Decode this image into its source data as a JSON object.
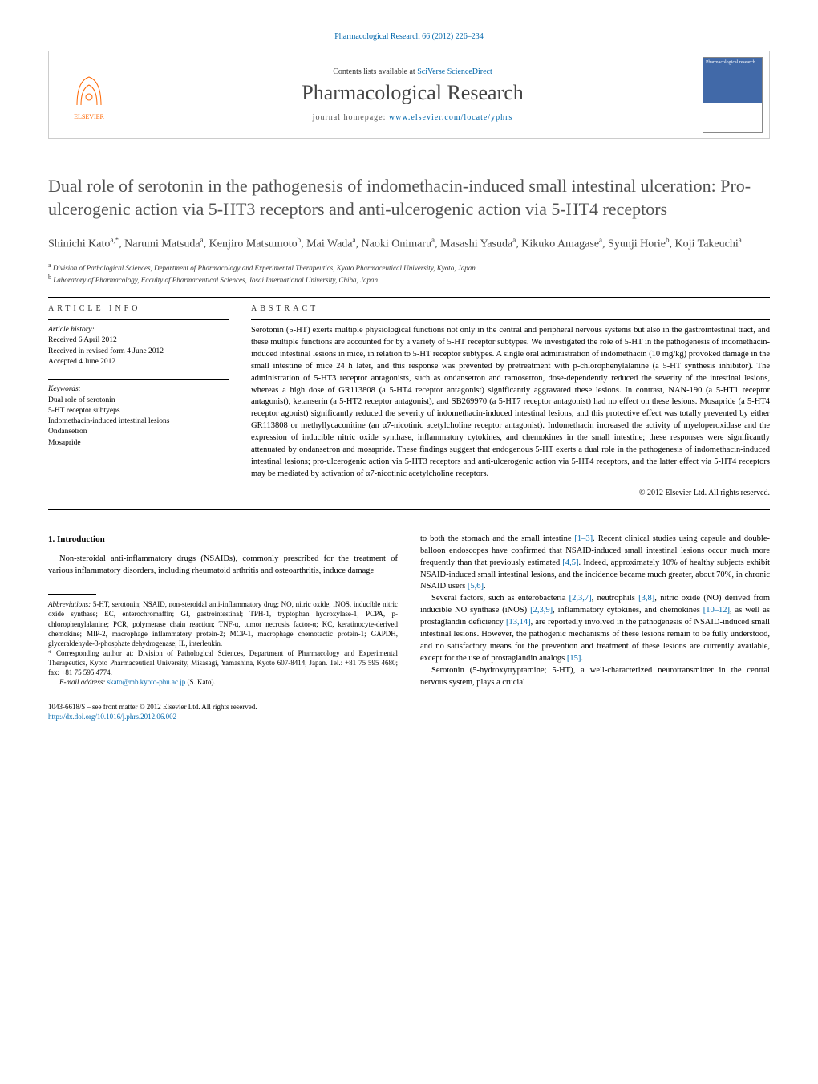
{
  "header": {
    "citation": "Pharmacological Research 66 (2012) 226–234",
    "contents_prefix": "Contents lists available at ",
    "contents_link": "SciVerse ScienceDirect",
    "journal_name": "Pharmacological Research",
    "homepage_prefix": "journal homepage: ",
    "homepage_url": "www.elsevier.com/locate/yphrs",
    "publisher_logo_label": "ELSEVIER",
    "cover_label": "Pharmacological research"
  },
  "article": {
    "title": "Dual role of serotonin in the pathogenesis of indomethacin-induced small intestinal ulceration: Pro-ulcerogenic action via 5-HT3 receptors and anti-ulcerogenic action via 5-HT4 receptors",
    "authors_html": "Shinichi Kato<sup>a,*</sup>, Narumi Matsuda<sup>a</sup>, Kenjiro Matsumoto<sup>b</sup>, Mai Wada<sup>a</sup>, Naoki Onimaru<sup>a</sup>, Masashi Yasuda<sup>a</sup>, Kikuko Amagase<sup>a</sup>, Syunji Horie<sup>b</sup>, Koji Takeuchi<sup>a</sup>",
    "affiliations": [
      "a Division of Pathological Sciences, Department of Pharmacology and Experimental Therapeutics, Kyoto Pharmaceutical University, Kyoto, Japan",
      "b Laboratory of Pharmacology, Faculty of Pharmaceutical Sciences, Josai International University, Chiba, Japan"
    ]
  },
  "info": {
    "heading": "ARTICLE INFO",
    "history_label": "Article history:",
    "history": [
      "Received 6 April 2012",
      "Received in revised form 4 June 2012",
      "Accepted 4 June 2012"
    ],
    "keywords_label": "Keywords:",
    "keywords": [
      "Dual role of serotonin",
      "5-HT receptor subtyeps",
      "Indomethacin-induced intestinal lesions",
      "Ondansetron",
      "Mosapride"
    ]
  },
  "abstract": {
    "heading": "ABSTRACT",
    "text": "Serotonin (5-HT) exerts multiple physiological functions not only in the central and peripheral nervous systems but also in the gastrointestinal tract, and these multiple functions are accounted for by a variety of 5-HT receptor subtypes. We investigated the role of 5-HT in the pathogenesis of indomethacin-induced intestinal lesions in mice, in relation to 5-HT receptor subtypes. A single oral administration of indomethacin (10 mg/kg) provoked damage in the small intestine of mice 24 h later, and this response was prevented by pretreatment with p-chlorophenylalanine (a 5-HT synthesis inhibitor). The administration of 5-HT3 receptor antagonists, such as ondansetron and ramosetron, dose-dependently reduced the severity of the intestinal lesions, whereas a high dose of GR113808 (a 5-HT4 receptor antagonist) significantly aggravated these lesions. In contrast, NAN-190 (a 5-HT1 receptor antagonist), ketanserin (a 5-HT2 receptor antagonist), and SB269970 (a 5-HT7 receptor antagonist) had no effect on these lesions. Mosapride (a 5-HT4 receptor agonist) significantly reduced the severity of indomethacin-induced intestinal lesions, and this protective effect was totally prevented by either GR113808 or methyllycaconitine (an α7-nicotinic acetylcholine receptor antagonist). Indomethacin increased the activity of myeloperoxidase and the expression of inducible nitric oxide synthase, inflammatory cytokines, and chemokines in the small intestine; these responses were significantly attenuated by ondansetron and mosapride. These findings suggest that endogenous 5-HT exerts a dual role in the pathogenesis of indomethacin-induced intestinal lesions; pro-ulcerogenic action via 5-HT3 receptors and anti-ulcerogenic action via 5-HT4 receptors, and the latter effect via 5-HT4 receptors may be mediated by activation of α7-nicotinic acetylcholine receptors.",
    "copyright": "© 2012 Elsevier Ltd. All rights reserved."
  },
  "body": {
    "intro_heading": "1. Introduction",
    "col1_p1": "Non-steroidal anti-inflammatory drugs (NSAIDs), commonly prescribed for the treatment of various inflammatory disorders, including rheumatoid arthritis and osteoarthritis, induce damage",
    "col2_p1_pre": "to both the stomach and the small intestine ",
    "col2_p1_ref1": "[1–3]",
    "col2_p1_mid1": ". Recent clinical studies using capsule and double-balloon endoscopes have confirmed that NSAID-induced small intestinal lesions occur much more frequently than that previously estimated ",
    "col2_p1_ref2": "[4,5]",
    "col2_p1_mid2": ". Indeed, approximately 10% of healthy subjects exhibit NSAID-induced small intestinal lesions, and the incidence became much greater, about 70%, in chronic NSAID users ",
    "col2_p1_ref3": "[5,6]",
    "col2_p1_end": ".",
    "col2_p2_pre": "Several factors, such as enterobacteria ",
    "col2_p2_r1": "[2,3,7]",
    "col2_p2_t1": ", neutrophils ",
    "col2_p2_r2": "[3,8]",
    "col2_p2_t2": ", nitric oxide (NO) derived from inducible NO synthase (iNOS) ",
    "col2_p2_r3": "[2,3,9]",
    "col2_p2_t3": ", inflammatory cytokines, and chemokines ",
    "col2_p2_r4": "[10–12]",
    "col2_p2_t4": ", as well as prostaglandin deficiency ",
    "col2_p2_r5": "[13,14]",
    "col2_p2_t5": ", are reportedly involved in the pathogenesis of NSAID-induced small intestinal lesions. However, the pathogenic mechanisms of these lesions remain to be fully understood, and no satisfactory means for the prevention and treatment of these lesions are currently available, except for the use of prostaglandin analogs ",
    "col2_p2_r6": "[15]",
    "col2_p2_end": ".",
    "col2_p3": "Serotonin (5-hydroxytryptamine; 5-HT), a well-characterized neurotransmitter in the central nervous system, plays a crucial"
  },
  "footnotes": {
    "abbrev_label": "Abbreviations:",
    "abbrev_text": " 5-HT, serotonin; NSAID, non-steroidal anti-inflammatory drug; NO, nitric oxide; iNOS, inducible nitric oxide synthase; EC, enterochromaffin; GI, gastrointestinal; TPH-1, tryptophan hydroxylase-1; PCPA, p-chlorophenylalanine; PCR, polymerase chain reaction; TNF-α, tumor necrosis factor-α; KC, keratinocyte-derived chemokine; MIP-2, macrophage inflammatory protein-2; MCP-1, macrophage chemotactic protein-1; GAPDH, glyceraldehyde-3-phosphate dehydrogenase; IL, interleukin.",
    "corr_label": "* Corresponding author at: ",
    "corr_text": "Division of Pathological Sciences, Department of Pharmacology and Experimental Therapeutics, Kyoto Pharmaceutical University, Misasagi, Yamashina, Kyoto 607-8414, Japan. Tel.: +81 75 595 4680; fax: +81 75 595 4774.",
    "email_label": "E-mail address: ",
    "email": "skato@mb.kyoto-phu.ac.jp",
    "email_suffix": " (S. Kato)."
  },
  "footer": {
    "front_matter": "1043-6618/$ – see front matter © 2012 Elsevier Ltd. All rights reserved.",
    "doi": "http://dx.doi.org/10.1016/j.phrs.2012.06.002"
  },
  "colors": {
    "link": "#0066aa",
    "title_gray": "#525252",
    "elsevier_orange": "#ff6600",
    "cover_blue": "#4169a8"
  }
}
